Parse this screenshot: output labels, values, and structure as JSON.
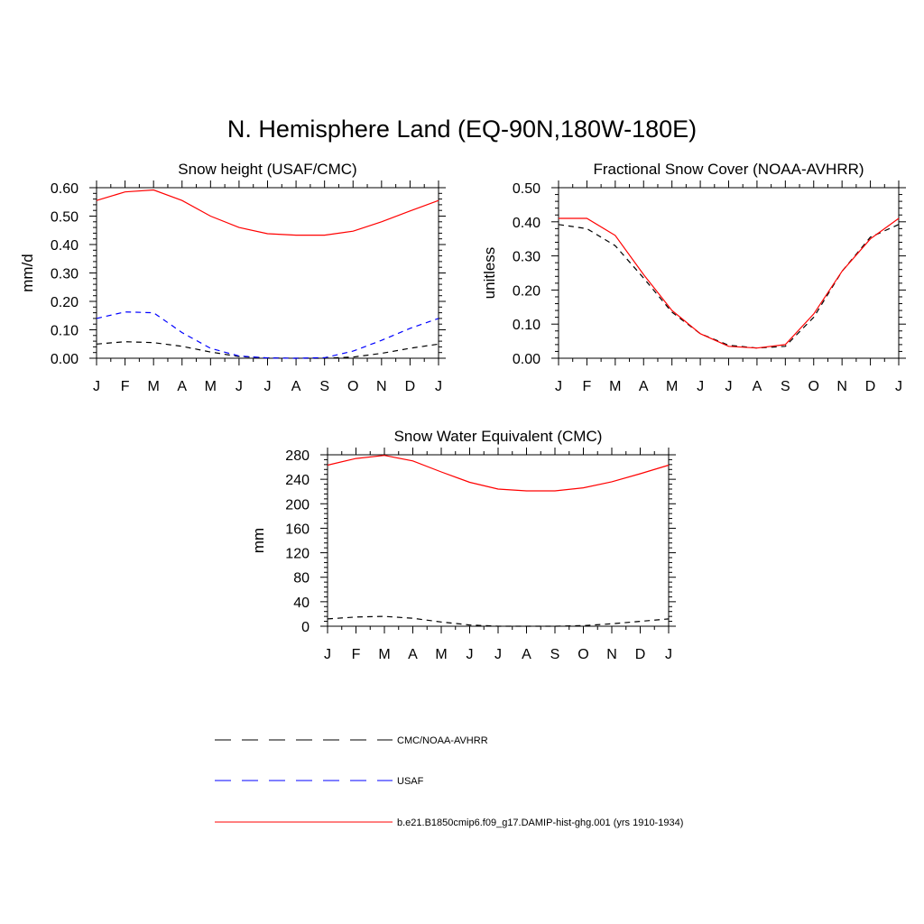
{
  "figure_title": "N. Hemisphere Land (EQ-90N,180W-180E)",
  "legend": [
    {
      "label": "CMC/NOAA-AVHRR",
      "color": "#000000",
      "dash": "dash"
    },
    {
      "label": "USAF",
      "color": "#0000ff",
      "dash": "dash"
    },
    {
      "label": "b.e21.B1850cmip6.f09_g17.DAMIP-hist-ghg.001 (yrs 1910-1934)",
      "color": "#ff0000",
      "dash": "solid"
    }
  ],
  "chart_data": [
    {
      "type": "line",
      "title": "Snow height (USAF/CMC)",
      "xlabel": "",
      "ylabel": "mm/d",
      "categories": [
        "J",
        "F",
        "M",
        "A",
        "M",
        "J",
        "J",
        "A",
        "S",
        "O",
        "N",
        "D",
        "J"
      ],
      "ylim": [
        0,
        0.6
      ],
      "yticks": [
        "0.00",
        "0.10",
        "0.20",
        "0.30",
        "0.40",
        "0.50",
        "0.60"
      ],
      "series": [
        {
          "name": "CMC/NOAA-AVHRR",
          "color": "#000000",
          "dash": "dash",
          "values": [
            0.05,
            0.058,
            0.055,
            0.042,
            0.022,
            0.006,
            0.001,
            0.0,
            0.0,
            0.004,
            0.017,
            0.035,
            0.05
          ]
        },
        {
          "name": "USAF",
          "color": "#0000ff",
          "dash": "dash",
          "values": [
            0.14,
            0.163,
            0.16,
            0.09,
            0.035,
            0.008,
            0.001,
            0.0,
            0.002,
            0.025,
            0.063,
            0.105,
            0.14
          ]
        },
        {
          "name": "b.e21.B1850cmip6.f09_g17.DAMIP-hist-ghg.001 (yrs 1910-1934)",
          "color": "#ff0000",
          "dash": "solid",
          "values": [
            0.555,
            0.585,
            0.592,
            0.555,
            0.5,
            0.46,
            0.438,
            0.433,
            0.433,
            0.447,
            0.48,
            0.518,
            0.555
          ]
        }
      ]
    },
    {
      "type": "line",
      "title": "Fractional Snow Cover (NOAA-AVHRR)",
      "xlabel": "",
      "ylabel": "unitless",
      "categories": [
        "J",
        "F",
        "M",
        "A",
        "M",
        "J",
        "J",
        "A",
        "S",
        "O",
        "N",
        "D",
        "J"
      ],
      "ylim": [
        0,
        0.5
      ],
      "yticks": [
        "0.00",
        "0.10",
        "0.20",
        "0.30",
        "0.40",
        "0.50"
      ],
      "series": [
        {
          "name": "CMC/NOAA-AVHRR",
          "color": "#000000",
          "dash": "dash",
          "values": [
            0.392,
            0.38,
            0.33,
            0.235,
            0.135,
            0.072,
            0.038,
            0.03,
            0.035,
            0.12,
            0.255,
            0.355,
            0.392
          ]
        },
        {
          "name": "b.e21.B1850cmip6.f09_g17.DAMIP-hist-ghg.001 (yrs 1910-1934)",
          "color": "#ff0000",
          "dash": "solid",
          "values": [
            0.41,
            0.41,
            0.36,
            0.245,
            0.14,
            0.072,
            0.035,
            0.03,
            0.04,
            0.13,
            0.255,
            0.35,
            0.41
          ]
        }
      ]
    },
    {
      "type": "line",
      "title": "Snow Water Equivalent (CMC)",
      "xlabel": "",
      "ylabel": "mm",
      "categories": [
        "J",
        "F",
        "M",
        "A",
        "M",
        "J",
        "J",
        "A",
        "S",
        "O",
        "N",
        "D",
        "J"
      ],
      "ylim": [
        0,
        280
      ],
      "yticks": [
        "0",
        "40",
        "80",
        "120",
        "160",
        "200",
        "240",
        "280"
      ],
      "series": [
        {
          "name": "CMC/NOAA-AVHRR",
          "color": "#000000",
          "dash": "dash",
          "values": [
            12,
            15,
            16,
            13,
            7,
            2,
            0,
            0,
            0,
            1,
            4,
            8,
            12
          ]
        },
        {
          "name": "b.e21.B1850cmip6.f09_g17.DAMIP-hist-ghg.001 (yrs 1910-1934)",
          "color": "#ff0000",
          "dash": "solid",
          "values": [
            263,
            274,
            279,
            270,
            252,
            235,
            224,
            221,
            221,
            226,
            236,
            249,
            263
          ]
        }
      ]
    }
  ]
}
